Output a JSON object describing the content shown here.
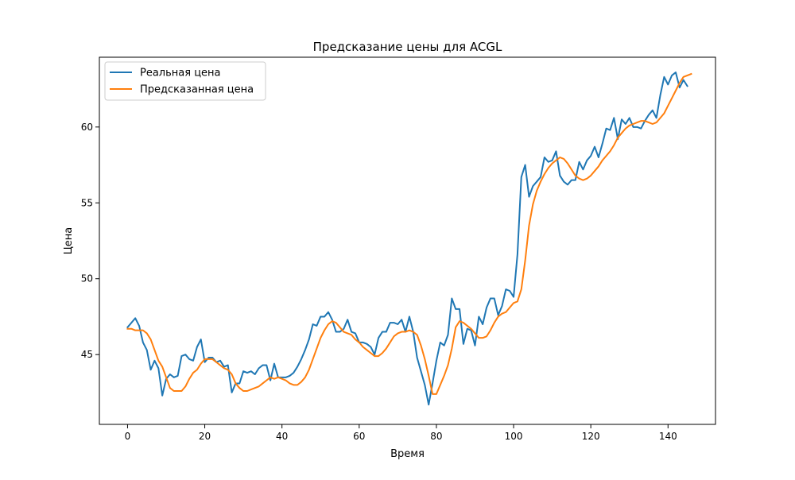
{
  "chart_data": {
    "type": "line",
    "title": "Предсказание цены для ACGL",
    "xlabel": "Время",
    "ylabel": "Цена",
    "xlim": [
      -7.3,
      152.3
    ],
    "ylim": [
      40.4,
      64.6
    ],
    "xticks": [
      0,
      20,
      40,
      60,
      80,
      100,
      120,
      140
    ],
    "yticks": [
      45,
      50,
      55,
      60
    ],
    "grid": false,
    "legend_position": "upper left",
    "series": [
      {
        "name": "Реальная цена",
        "color": "#1f77b4",
        "values": [
          46.8,
          47.1,
          47.4,
          46.9,
          45.8,
          45.3,
          44.0,
          44.6,
          44.1,
          42.3,
          43.4,
          43.7,
          43.5,
          43.6,
          44.9,
          45.0,
          44.7,
          44.6,
          45.5,
          46.0,
          44.5,
          44.8,
          44.8,
          44.5,
          44.6,
          44.2,
          44.3,
          42.5,
          43.1,
          43.1,
          43.9,
          43.8,
          43.9,
          43.7,
          44.1,
          44.3,
          44.3,
          43.3,
          44.4,
          43.5,
          43.5,
          43.5,
          43.6,
          43.8,
          44.2,
          44.7,
          45.3,
          46.0,
          47.0,
          46.9,
          47.5,
          47.5,
          47.8,
          47.3,
          46.5,
          46.5,
          46.7,
          47.3,
          46.5,
          46.4,
          45.8,
          45.8,
          45.7,
          45.5,
          45.0,
          46.1,
          46.5,
          46.5,
          47.1,
          47.1,
          47.0,
          47.3,
          46.5,
          47.5,
          46.5,
          44.8,
          43.9,
          43.0,
          41.7,
          43.1,
          44.6,
          45.8,
          45.6,
          46.3,
          48.7,
          48.0,
          48.0,
          45.7,
          46.7,
          46.6,
          45.6,
          47.5,
          47.0,
          48.1,
          48.7,
          48.7,
          47.6,
          48.2,
          49.3,
          49.2,
          48.8,
          51.6,
          56.7,
          57.5,
          55.4,
          56.1,
          56.4,
          56.7,
          58.0,
          57.7,
          57.8,
          58.4,
          56.8,
          56.4,
          56.2,
          56.5,
          56.5,
          57.7,
          57.2,
          57.8,
          58.1,
          58.7,
          58.0,
          58.9,
          59.9,
          59.8,
          60.6,
          59.2,
          60.5,
          60.2,
          60.6,
          60.0,
          60.0,
          59.9,
          60.4,
          60.8,
          61.1,
          60.6,
          62.1,
          63.3,
          62.8,
          63.4,
          63.6,
          62.6,
          63.1,
          62.7
        ]
      },
      {
        "name": "Предсказанная цена",
        "color": "#ff7f0e",
        "values": [
          46.7,
          46.7,
          46.6,
          46.6,
          46.6,
          46.4,
          46.0,
          45.3,
          44.6,
          44.2,
          43.5,
          42.8,
          42.6,
          42.6,
          42.6,
          42.9,
          43.4,
          43.8,
          44.0,
          44.4,
          44.7,
          44.7,
          44.7,
          44.5,
          44.3,
          44.1,
          44.0,
          43.7,
          43.1,
          42.8,
          42.6,
          42.6,
          42.7,
          42.8,
          42.9,
          43.1,
          43.3,
          43.5,
          43.4,
          43.5,
          43.4,
          43.3,
          43.1,
          43.0,
          43.0,
          43.2,
          43.5,
          44.0,
          44.7,
          45.4,
          46.1,
          46.6,
          47.0,
          47.2,
          47.1,
          46.8,
          46.5,
          46.4,
          46.3,
          46.0,
          45.8,
          45.5,
          45.3,
          45.1,
          44.9,
          44.9,
          45.1,
          45.4,
          45.8,
          46.2,
          46.4,
          46.5,
          46.5,
          46.6,
          46.5,
          46.3,
          45.6,
          44.7,
          43.6,
          42.4,
          42.4,
          43.0,
          43.6,
          44.3,
          45.4,
          46.8,
          47.2,
          47.1,
          46.9,
          46.7,
          46.4,
          46.1,
          46.1,
          46.2,
          46.6,
          47.1,
          47.5,
          47.7,
          47.8,
          48.1,
          48.4,
          48.5,
          49.3,
          51.2,
          53.5,
          54.9,
          55.8,
          56.4,
          56.9,
          57.3,
          57.6,
          57.8,
          58.0,
          57.9,
          57.6,
          57.2,
          56.8,
          56.6,
          56.5,
          56.6,
          56.8,
          57.1,
          57.4,
          57.8,
          58.1,
          58.4,
          58.8,
          59.3,
          59.6,
          59.9,
          60.1,
          60.2,
          60.3,
          60.4,
          60.4,
          60.3,
          60.2,
          60.3,
          60.6,
          60.9,
          61.4,
          61.9,
          62.4,
          62.9,
          63.3,
          63.4,
          63.5
        ]
      }
    ]
  }
}
